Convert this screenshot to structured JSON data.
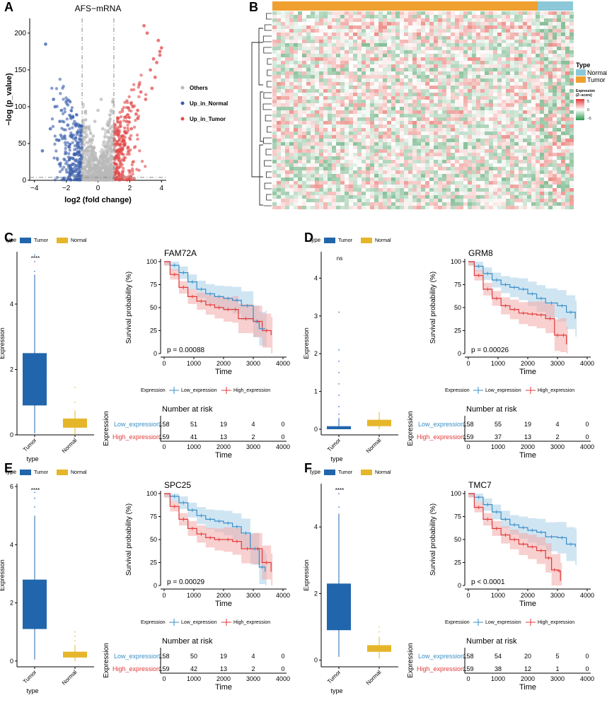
{
  "colors": {
    "tumor": "#2166ac",
    "normal": "#e6b62a",
    "low": "#3a8fc8",
    "high": "#e03a3a",
    "low_band": "#a9cfe8",
    "high_band": "#f2aaa8",
    "up_tumor": "#e34a4a",
    "up_normal": "#3a5fad",
    "others": "#b9b9b9",
    "type_tumor_bar": "#f0a030",
    "type_normal_bar": "#8cc8d8"
  },
  "panels": {
    "A": {
      "label": "A"
    },
    "B": {
      "label": "B"
    },
    "C": {
      "label": "C"
    },
    "D": {
      "label": "D"
    },
    "E": {
      "label": "E"
    },
    "F": {
      "label": "F"
    }
  },
  "chart_data": [
    {
      "id": "A",
      "type": "scatter",
      "subtype": "volcano",
      "title": "AFS−mRNA",
      "xlabel": "log2 (fold change)",
      "ylabel": "−log (p_value)",
      "xlim": [
        -4.3,
        4.3
      ],
      "ylim": [
        0,
        220
      ],
      "xticks": [
        -4,
        -2,
        0,
        2,
        4
      ],
      "yticks": [
        0,
        50,
        100,
        150,
        200
      ],
      "thresholds": {
        "fc": [
          -1,
          1
        ],
        "y": 4
      },
      "legend": [
        "Others",
        "Up_in_Normal",
        "Up_in_Tumor"
      ],
      "series_points_shown": [
        {
          "name": "Up_in_Tumor",
          "x": [
            1.2,
            1.5,
            1.8,
            2.1,
            2.4,
            2.7,
            3.0,
            3.3,
            3.6,
            3.9,
            2.9,
            3.1,
            3.8,
            4.0,
            3.5,
            2.2,
            1.6,
            1.3,
            2.6,
            3.4,
            3.7,
            3.9,
            1.9,
            2.5
          ],
          "y": [
            40,
            60,
            80,
            70,
            90,
            120,
            110,
            150,
            140,
            170,
            210,
            200,
            190,
            180,
            165,
            100,
            55,
            30,
            130,
            125,
            160,
            175,
            45,
            95
          ]
        },
        {
          "name": "Up_in_Normal",
          "x": [
            -1.2,
            -1.5,
            -1.8,
            -2.1,
            -2.4,
            -2.7,
            -3.0,
            -3.3,
            -2.8,
            -2.3,
            -1.6,
            -1.9,
            -2.6,
            -3.5
          ],
          "y": [
            20,
            35,
            45,
            60,
            80,
            100,
            70,
            185,
            110,
            95,
            30,
            75,
            55,
            40
          ]
        },
        {
          "name": "Others",
          "x": [
            -0.9,
            -0.6,
            -0.3,
            0,
            0.3,
            0.6,
            0.9,
            -0.5,
            0.5,
            0.2,
            -0.2,
            0.7,
            -0.7,
            0.1
          ],
          "y": [
            25,
            40,
            60,
            95,
            70,
            45,
            30,
            15,
            20,
            110,
            80,
            55,
            35,
            10
          ]
        }
      ]
    },
    {
      "id": "B",
      "type": "heatmap",
      "legend_title": "Type",
      "legend_entries": [
        "Normal",
        "Tumor"
      ],
      "scale_title": "Expression\n(Z−score)",
      "scale_ticks": [
        "5",
        "0",
        "−5"
      ]
    },
    {
      "id": "C",
      "type": "box_and_survival",
      "gene": "FAM72A",
      "box": {
        "legend_title": "type",
        "legend_entries": [
          "Tumor",
          "Normal"
        ],
        "xlabel": "type",
        "ylabel": "Expression",
        "signif": "****",
        "ylim": [
          0,
          5.6
        ],
        "yticks": [
          0,
          2,
          4
        ],
        "categories": [
          "Tumor",
          "Normal"
        ],
        "stats": [
          {
            "q1": 0.9,
            "median": 1.7,
            "q3": 2.5,
            "lo": 0.05,
            "hi": 4.9,
            "outliers": [
              5.0,
              5.3,
              5.5
            ]
          },
          {
            "q1": 0.22,
            "median": 0.3,
            "q3": 0.5,
            "lo": 0.0,
            "hi": 0.75,
            "outliers": [
              1.0,
              1.45
            ]
          }
        ]
      },
      "surv": {
        "pvalue": "p = 0.00088",
        "xlabel": "Time",
        "ylabel": "Survival probability (%)",
        "xlim": [
          0,
          4000
        ],
        "xticks": [
          0,
          1000,
          2000,
          3000,
          4000
        ],
        "yticks": [
          0,
          25,
          50,
          75,
          100
        ],
        "low": {
          "t": [
            0,
            200,
            500,
            800,
            1100,
            1400,
            1700,
            2000,
            2300,
            2600,
            3000,
            3200,
            3400
          ],
          "s": [
            100,
            96,
            88,
            78,
            70,
            65,
            62,
            60,
            58,
            52,
            35,
            27,
            27
          ]
        },
        "high": {
          "t": [
            0,
            200,
            500,
            800,
            1100,
            1400,
            1700,
            2000,
            2300,
            2500,
            3000,
            3300,
            3600
          ],
          "s": [
            100,
            86,
            72,
            62,
            57,
            53,
            50,
            48,
            48,
            38,
            35,
            25,
            20
          ]
        }
      },
      "legend": {
        "title": "Expression",
        "entries": [
          "Low_expression",
          "High_expression"
        ]
      },
      "risk": {
        "title": "Number at risk",
        "ylabel": "Expression",
        "xlabel": "Time",
        "xticks": [
          "0",
          "1000",
          "2000",
          "3000",
          "4000"
        ],
        "rows": [
          {
            "label": "Low_expression",
            "values": [
              "158",
              "51",
              "19",
              "4",
              "0"
            ]
          },
          {
            "label": "High_expression",
            "values": [
              "159",
              "41",
              "13",
              "2",
              "0"
            ]
          }
        ]
      }
    },
    {
      "id": "D",
      "type": "box_and_survival",
      "gene": "GRM8",
      "box": {
        "legend_title": "type",
        "legend_entries": [
          "Tumor",
          "Normal"
        ],
        "xlabel": "type",
        "ylabel": "Expression",
        "signif": "ns",
        "ylim": [
          -0.15,
          4.7
        ],
        "yticks": [
          0,
          1,
          2,
          3,
          4
        ],
        "categories": [
          "Tumor",
          "Normal"
        ],
        "stats": [
          {
            "q1": 0.0,
            "median": 0.02,
            "q3": 0.08,
            "lo": 0.0,
            "hi": 0.3,
            "outliers": [
              0.4,
              0.6,
              0.9,
              1.2,
              1.5,
              1.8,
              2.1,
              3.1
            ]
          },
          {
            "q1": 0.08,
            "median": 0.15,
            "q3": 0.25,
            "lo": 0.0,
            "hi": 0.45,
            "outliers": []
          }
        ]
      },
      "surv": {
        "pvalue": "p = 0.00026",
        "xlabel": "Time",
        "ylabel": "Survival probability (%)",
        "xlim": [
          0,
          4000
        ],
        "xticks": [
          0,
          1000,
          2000,
          3000,
          4000
        ],
        "yticks": [
          0,
          25,
          50,
          75,
          100
        ],
        "low": {
          "t": [
            0,
            200,
            500,
            800,
            1100,
            1400,
            1700,
            2000,
            2300,
            2600,
            3000,
            3300,
            3600
          ],
          "s": [
            100,
            95,
            87,
            80,
            75,
            72,
            70,
            65,
            60,
            55,
            52,
            45,
            38
          ]
        },
        "high": {
          "t": [
            0,
            200,
            500,
            800,
            1100,
            1400,
            1700,
            2000,
            2300,
            2600,
            2900,
            3100,
            3300
          ],
          "s": [
            100,
            85,
            70,
            60,
            52,
            48,
            44,
            43,
            42,
            38,
            20,
            20,
            10
          ]
        }
      },
      "legend": {
        "title": "Expression",
        "entries": [
          "Low_expression",
          "High_expression"
        ]
      },
      "risk": {
        "title": "Number at risk",
        "ylabel": "Expression",
        "xlabel": "Time",
        "xticks": [
          "0",
          "1000",
          "2000",
          "3000",
          "4000"
        ],
        "rows": [
          {
            "label": "Low_expression",
            "values": [
              "158",
              "55",
              "19",
              "4",
              "0"
            ]
          },
          {
            "label": "High_expression",
            "values": [
              "159",
              "37",
              "13",
              "2",
              "0"
            ]
          }
        ]
      }
    },
    {
      "id": "E",
      "type": "box_and_survival",
      "gene": "SPC25",
      "box": {
        "legend_title": "type",
        "legend_entries": [
          "Tumor",
          "Normal"
        ],
        "xlabel": "type",
        "ylabel": "Expression",
        "signif": "****",
        "ylim": [
          -0.2,
          6.1
        ],
        "yticks": [
          0,
          2,
          4,
          6
        ],
        "categories": [
          "Tumor",
          "Normal"
        ],
        "stats": [
          {
            "q1": 1.1,
            "median": 2.0,
            "q3": 2.8,
            "lo": 0.05,
            "hi": 5.0,
            "outliers": [
              5.3,
              5.6,
              5.8
            ]
          },
          {
            "q1": 0.12,
            "median": 0.2,
            "q3": 0.32,
            "lo": 0.0,
            "hi": 0.55,
            "outliers": [
              0.7,
              0.85,
              1.0
            ]
          }
        ]
      },
      "surv": {
        "pvalue": "p = 0.00029",
        "xlabel": "Time",
        "ylabel": "Survival probability (%)",
        "xlim": [
          0,
          4000
        ],
        "xticks": [
          0,
          1000,
          2000,
          3000,
          4000
        ],
        "yticks": [
          0,
          25,
          50,
          75,
          100
        ],
        "low": {
          "t": [
            0,
            200,
            500,
            800,
            1100,
            1400,
            1700,
            2000,
            2300,
            2600,
            2900,
            3200,
            3400
          ],
          "s": [
            100,
            97,
            90,
            82,
            76,
            72,
            70,
            68,
            64,
            57,
            40,
            20,
            15
          ]
        },
        "high": {
          "t": [
            0,
            200,
            500,
            800,
            1100,
            1400,
            1700,
            2000,
            2300,
            2600,
            3000,
            3300,
            3600
          ],
          "s": [
            100,
            86,
            72,
            62,
            56,
            52,
            50,
            50,
            48,
            40,
            40,
            25,
            15
          ]
        }
      },
      "legend": {
        "title": "Expression",
        "entries": [
          "Low_expression",
          "High_expression"
        ]
      },
      "risk": {
        "title": "Number at risk",
        "ylabel": "Expression",
        "xlabel": "Time",
        "xticks": [
          "0",
          "1000",
          "2000",
          "3000",
          "4000"
        ],
        "rows": [
          {
            "label": "Low_expression",
            "values": [
              "158",
              "50",
              "19",
              "4",
              "0"
            ]
          },
          {
            "label": "High_expression",
            "values": [
              "159",
              "42",
              "13",
              "2",
              "0"
            ]
          }
        ]
      }
    },
    {
      "id": "F",
      "type": "box_and_survival",
      "gene": "TMC7",
      "box": {
        "legend_title": "type",
        "legend_entries": [
          "Tumor",
          "Normal"
        ],
        "xlabel": "type",
        "ylabel": "Expression",
        "signif": "****",
        "ylim": [
          -0.2,
          5.3
        ],
        "yticks": [
          0,
          2,
          4
        ],
        "categories": [
          "Tumor",
          "Normal"
        ],
        "stats": [
          {
            "q1": 0.9,
            "median": 1.6,
            "q3": 2.3,
            "lo": 0.1,
            "hi": 4.4,
            "outliers": [
              4.6,
              5.0
            ]
          },
          {
            "q1": 0.25,
            "median": 0.32,
            "q3": 0.45,
            "lo": 0.05,
            "hi": 0.7,
            "outliers": [
              0.85,
              1.0
            ]
          }
        ]
      },
      "surv": {
        "pvalue": "p < 0.0001",
        "xlabel": "Time",
        "ylabel": "Survival probability (%)",
        "xlim": [
          0,
          4000
        ],
        "xticks": [
          0,
          1000,
          2000,
          3000,
          4000
        ],
        "yticks": [
          0,
          25,
          50,
          75,
          100
        ],
        "low": {
          "t": [
            0,
            200,
            500,
            800,
            1100,
            1400,
            1700,
            2000,
            2300,
            2600,
            3000,
            3300,
            3600
          ],
          "s": [
            100,
            96,
            88,
            80,
            72,
            66,
            63,
            60,
            58,
            53,
            52,
            45,
            42
          ]
        },
        "high": {
          "t": [
            0,
            200,
            500,
            800,
            1100,
            1400,
            1700,
            2000,
            2300,
            2600,
            2800,
            3000,
            3100
          ],
          "s": [
            100,
            85,
            72,
            62,
            55,
            50,
            45,
            42,
            38,
            30,
            17,
            16,
            5
          ]
        }
      },
      "legend": {
        "title": "Expression",
        "entries": [
          "Low_expression",
          "High_expression"
        ]
      },
      "risk": {
        "title": "Number at risk",
        "ylabel": "Expression",
        "xlabel": "Time",
        "xticks": [
          "0",
          "1000",
          "2000",
          "3000",
          "4000"
        ],
        "rows": [
          {
            "label": "Low_expression",
            "values": [
              "158",
              "54",
              "20",
              "5",
              "0"
            ]
          },
          {
            "label": "High_expression",
            "values": [
              "159",
              "38",
              "12",
              "1",
              "0"
            ]
          }
        ]
      }
    }
  ]
}
